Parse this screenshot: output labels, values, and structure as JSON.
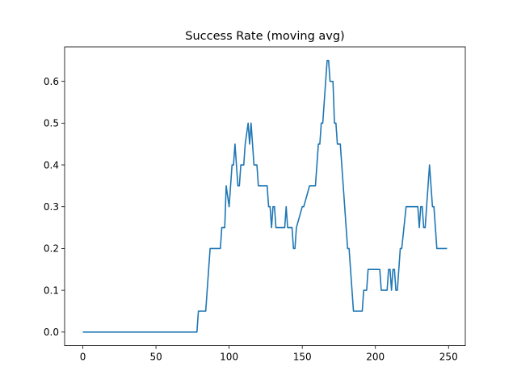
{
  "chart_data": {
    "type": "line",
    "title": "Success Rate (moving avg)",
    "xlabel": "",
    "ylabel": "",
    "xlim": [
      -12.45,
      261.45
    ],
    "ylim": [
      -0.0325,
      0.6825
    ],
    "xticks": [
      0,
      50,
      100,
      150,
      200,
      250
    ],
    "yticks": [
      0.0,
      0.1,
      0.2,
      0.3,
      0.4,
      0.5,
      0.6
    ],
    "grid": false,
    "line_color": "#1f77b4",
    "series": [
      {
        "x": [
          0,
          78,
          79,
          84,
          87,
          94,
          95,
          97,
          98,
          100,
          102,
          103,
          104,
          105,
          106,
          107,
          108,
          110,
          111,
          113,
          114,
          115,
          116,
          117,
          118,
          119,
          120,
          121,
          122,
          126,
          127,
          128,
          129,
          130,
          131,
          132,
          138,
          139,
          140,
          143,
          144,
          145,
          146,
          150,
          151,
          155,
          156,
          157,
          158,
          159,
          160,
          161,
          162,
          163,
          164,
          165,
          166,
          167,
          168,
          169,
          170,
          171,
          172,
          173,
          174,
          175,
          176,
          177,
          178,
          179,
          180,
          181,
          182,
          183,
          184,
          185,
          191,
          192,
          194,
          195,
          203,
          204,
          208,
          209,
          210,
          211,
          212,
          213,
          214,
          215,
          216,
          217,
          218,
          221,
          222,
          228,
          229,
          230,
          231,
          232,
          233,
          234,
          235,
          236,
          237,
          238,
          239,
          240,
          241,
          242,
          243,
          244,
          249
        ],
        "y": [
          0,
          0,
          0.05,
          0.05,
          0.2,
          0.2,
          0.25,
          0.25,
          0.35,
          0.3,
          0.4,
          0.4,
          0.45,
          0.4,
          0.35,
          0.35,
          0.4,
          0.4,
          0.45,
          0.5,
          0.45,
          0.5,
          0.45,
          0.4,
          0.4,
          0.4,
          0.35,
          0.35,
          0.35,
          0.35,
          0.3,
          0.3,
          0.25,
          0.3,
          0.3,
          0.25,
          0.25,
          0.3,
          0.25,
          0.25,
          0.2,
          0.2,
          0.25,
          0.3,
          0.3,
          0.35,
          0.35,
          0.35,
          0.35,
          0.35,
          0.4,
          0.45,
          0.45,
          0.5,
          0.5,
          0.55,
          0.6,
          0.65,
          0.65,
          0.6,
          0.6,
          0.6,
          0.5,
          0.5,
          0.45,
          0.45,
          0.45,
          0.4,
          0.35,
          0.3,
          0.25,
          0.2,
          0.2,
          0.15,
          0.1,
          0.05,
          0.05,
          0.1,
          0.1,
          0.15,
          0.15,
          0.1,
          0.1,
          0.15,
          0.15,
          0.1,
          0.15,
          0.15,
          0.1,
          0.1,
          0.15,
          0.2,
          0.2,
          0.3,
          0.3,
          0.3,
          0.3,
          0.25,
          0.3,
          0.3,
          0.25,
          0.25,
          0.3,
          0.35,
          0.4,
          0.35,
          0.3,
          0.3,
          0.25,
          0.2,
          0.2,
          0.2,
          0.2
        ]
      }
    ]
  }
}
